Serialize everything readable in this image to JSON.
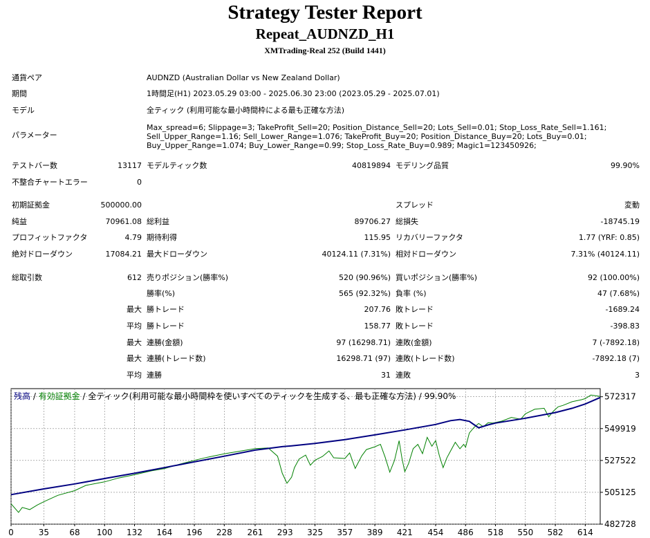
{
  "header": {
    "title": "Strategy Tester Report",
    "subtitle": "Repeat_AUDNZD_H1",
    "build": "XMTrading-Real 252 (Build 1441)"
  },
  "info": {
    "symbol_label": "通貨ペア",
    "symbol_value": "AUDNZD (Australian Dollar vs New Zealand Dollar)",
    "period_label": "期間",
    "period_value": "1時間足(H1) 2023.05.29 03:00 - 2025.06.30 23:00 (2023.05.29 - 2025.07.01)",
    "model_label": "モデル",
    "model_value": "全ティック (利用可能な最小時間枠による最も正確な方法)",
    "params_label": "パラメーター",
    "params_value": "Max_spread=6; Slippage=3; TakeProfit_Sell=20; Position_Distance_Sell=20; Lots_Sell=0.01; Stop_Loss_Rate_Sell=1.161; Sell_Upper_Range=1.16; Sell_Lower_Range=1.076; TakeProfit_Buy=20; Position_Distance_Buy=20; Lots_Buy=0.01; Buy_Upper_Range=1.074; Buy_Lower_Range=0.99; Stop_Loss_Rate_Buy=0.989; Magic1=123450926;"
  },
  "stats": {
    "bars_label": "テストバー数",
    "bars_value": "13117",
    "ticks_label": "モデルティック数",
    "ticks_value": "40819894",
    "quality_label": "モデリング品質",
    "quality_value": "99.90%",
    "mismatch_label": "不整合チャートエラー",
    "mismatch_value": "0",
    "deposit_label": "初期証拠金",
    "deposit_value": "500000.00",
    "spread_label": "スプレッド",
    "spread_value": "変動",
    "net_label": "純益",
    "net_value": "70961.08",
    "gross_profit_label": "総利益",
    "gross_profit_value": "89706.27",
    "gross_loss_label": "総損失",
    "gross_loss_value": "-18745.19",
    "pf_label": "プロフィットファクタ",
    "pf_value": "4.79",
    "expected_label": "期待利得",
    "expected_value": "115.95",
    "recovery_label": "リカバリーファクタ",
    "recovery_value": "1.77 (YRF: 0.85)",
    "abs_dd_label": "絶対ドローダウン",
    "abs_dd_value": "17084.21",
    "max_dd_label": "最大ドローダウン",
    "max_dd_value": "40124.11 (7.31%)",
    "rel_dd_label": "相対ドローダウン",
    "rel_dd_value": "7.31% (40124.11)",
    "total_trades_label": "総取引数",
    "total_trades_value": "612",
    "short_label": "売りポジション(勝率%)",
    "short_value": "520 (90.96%)",
    "long_label": "買いポジション(勝率%)",
    "long_value": "92 (100.00%)",
    "win_rate_label": "勝率(%)",
    "win_rate_value": "565 (92.32%)",
    "loss_rate_label": "負率 (%)",
    "loss_rate_value": "47 (7.68%)",
    "max_word": "最大",
    "avg_word": "平均",
    "largest_win_label": "勝トレード",
    "largest_win_value": "207.76",
    "largest_loss_label": "敗トレード",
    "largest_loss_value": "-1689.24",
    "avg_win_label": "勝トレード",
    "avg_win_value": "158.77",
    "avg_loss_label": "敗トレード",
    "avg_loss_value": "-398.83",
    "max_consec_win_label": "連勝(金額)",
    "max_consec_win_value": "97 (16298.71)",
    "max_consec_loss_label": "連敗(金額)",
    "max_consec_loss_value": "7 (-7892.18)",
    "max_consec_profit_label": "連勝(トレード数)",
    "max_consec_profit_value": "16298.71 (97)",
    "max_consec_lossamt_label": "連敗(トレード数)",
    "max_consec_lossamt_value": "-7892.18 (7)",
    "avg_consec_win_label": "連勝",
    "avg_consec_win_value": "31",
    "avg_consec_loss_label": "連敗",
    "avg_consec_loss_value": "3"
  },
  "chart_title": {
    "balance": "残高",
    "sep1": " / ",
    "equity": "有効証拠金",
    "rest": " / 全ティック(利用可能な最小時間枠を使いすべてのティックを生成する、最も正確な方法) / 99.90%"
  },
  "chart_data": {
    "type": "line",
    "colors": {
      "balance": "#000080",
      "equity": "#008000",
      "grid": "#808080"
    },
    "x_ticks": [
      "0",
      "35",
      "68",
      "100",
      "132",
      "164",
      "196",
      "228",
      "261",
      "293",
      "325",
      "357",
      "389",
      "421",
      "454",
      "486",
      "518",
      "550",
      "582",
      "614"
    ],
    "y_ticks": [
      "572317",
      "549919",
      "527522",
      "505125",
      "482728"
    ],
    "ylim": [
      482728,
      578000
    ],
    "xlim": [
      0,
      630
    ],
    "series": [
      {
        "name": "残高",
        "x": [
          0,
          35,
          68,
          100,
          132,
          164,
          196,
          228,
          261,
          290,
          300,
          325,
          357,
          389,
          421,
          454,
          470,
          480,
          490,
          495,
          500,
          510,
          518,
          550,
          582,
          600,
          614,
          630
        ],
        "values": [
          503500,
          507500,
          511000,
          514800,
          518500,
          522500,
          526500,
          530500,
          534800,
          537200,
          537800,
          539500,
          542200,
          545500,
          549000,
          552800,
          555500,
          556300,
          555000,
          552700,
          550500,
          552500,
          553800,
          557200,
          561200,
          564200,
          567200,
          571800
        ]
      },
      {
        "name": "有効証拠金",
        "x": [
          0,
          8,
          12,
          20,
          28,
          35,
          50,
          68,
          80,
          100,
          115,
          132,
          150,
          164,
          180,
          196,
          210,
          228,
          240,
          261,
          275,
          285,
          290,
          295,
          300,
          303,
          308,
          315,
          320,
          325,
          333,
          340,
          345,
          357,
          362,
          368,
          375,
          380,
          389,
          395,
          400,
          405,
          410,
          415,
          418,
          421,
          425,
          430,
          435,
          440,
          445,
          450,
          454,
          458,
          462,
          466,
          470,
          475,
          480,
          484,
          486,
          490,
          495,
          500,
          505,
          510,
          515,
          518,
          525,
          535,
          545,
          550,
          560,
          570,
          575,
          580,
          585,
          590,
          600,
          610,
          614,
          620,
          630
        ],
        "values": [
          497000,
          491000,
          494500,
          493000,
          496200,
          498500,
          503000,
          506300,
          510000,
          512500,
          515200,
          517500,
          520200,
          521800,
          524800,
          527600,
          529800,
          532200,
          533500,
          535800,
          536300,
          530500,
          518500,
          511500,
          515800,
          522500,
          528500,
          531300,
          524200,
          527700,
          530300,
          534200,
          529400,
          528900,
          532800,
          521900,
          530700,
          535200,
          537100,
          538800,
          529800,
          519300,
          527600,
          541400,
          529000,
          519600,
          525200,
          535800,
          538800,
          532300,
          543800,
          537500,
          541500,
          530800,
          522500,
          529300,
          534200,
          540300,
          535700,
          538800,
          536800,
          546800,
          550700,
          553500,
          551200,
          554000,
          553800,
          554200,
          555200,
          557800,
          556500,
          560300,
          563500,
          564200,
          558200,
          562200,
          565200,
          566200,
          568800,
          570200,
          571000,
          573500,
          572500
        ]
      }
    ]
  }
}
